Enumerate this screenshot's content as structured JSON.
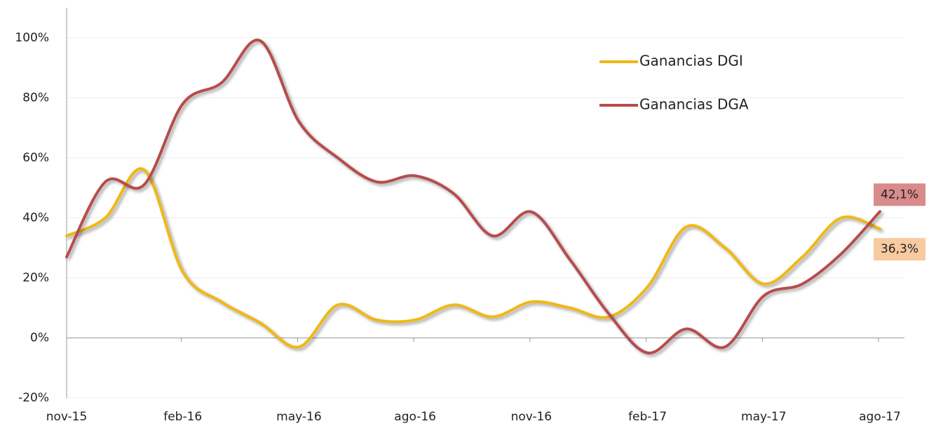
{
  "chart_data": {
    "type": "line",
    "categories": [
      "nov-15",
      null,
      null,
      "feb-16",
      null,
      null,
      "may-16",
      null,
      null,
      "ago-16",
      null,
      null,
      "nov-16",
      null,
      null,
      "feb-17",
      null,
      null,
      "may-17",
      null,
      null,
      "ago-17"
    ],
    "series": [
      {
        "name": "Ganancias DGI",
        "color": "#f0b814",
        "values": [
          34,
          40,
          56,
          22,
          12,
          5,
          -3,
          11,
          6,
          6,
          11,
          7,
          12,
          10,
          7,
          17,
          37,
          30,
          18,
          27,
          40,
          36.3
        ],
        "value_labels": [
          null,
          null,
          null,
          null,
          null,
          null,
          null,
          null,
          null,
          null,
          null,
          null,
          null,
          null,
          null,
          null,
          null,
          null,
          null,
          null,
          null,
          "36,3%"
        ],
        "label_color": "#f8caa0"
      },
      {
        "name": "Ganancias DGA",
        "color": "#b84c4c",
        "values": [
          27,
          52,
          51,
          78,
          85,
          99,
          72,
          60,
          52,
          54,
          48,
          34,
          42,
          26,
          8,
          -5,
          3,
          -3,
          14,
          18,
          28,
          42.1
        ],
        "value_labels": [
          null,
          null,
          null,
          null,
          null,
          null,
          null,
          null,
          null,
          null,
          null,
          null,
          null,
          null,
          null,
          null,
          null,
          null,
          null,
          null,
          null,
          "42,1%"
        ],
        "label_color": "#d98a8a"
      }
    ],
    "ylim": [
      -20,
      110
    ],
    "yticks": [
      {
        "value": -20,
        "label": "-20%"
      },
      {
        "value": 0,
        "label": "0%"
      },
      {
        "value": 20,
        "label": "20%"
      },
      {
        "value": 40,
        "label": "40%"
      },
      {
        "value": 60,
        "label": "60%"
      },
      {
        "value": 80,
        "label": "80%"
      },
      {
        "value": 100,
        "label": "100%"
      }
    ],
    "grid": true,
    "legend_loc": "upper right"
  }
}
